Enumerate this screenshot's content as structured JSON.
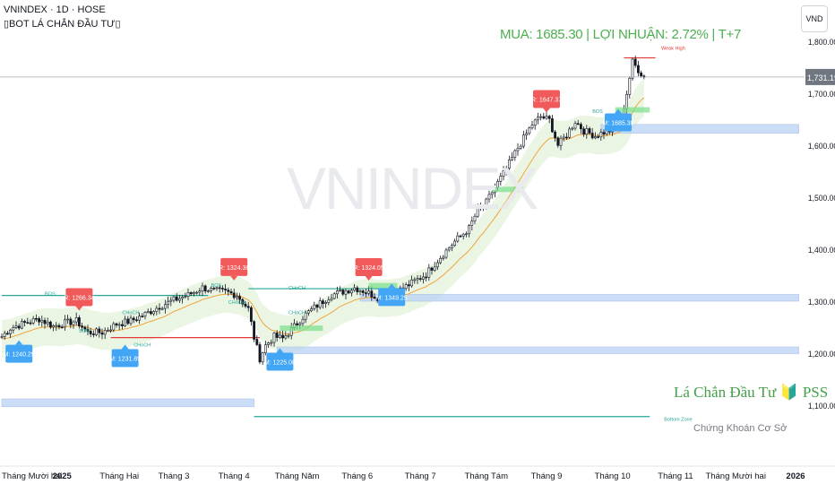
{
  "header": {
    "title": "VNINDEX · 1D · HOSE",
    "indicator": "▯BOT LÁ CHẮN ĐẦU TƯ▯",
    "currency": "VND"
  },
  "watermark": "VNINDEX",
  "trade_info": "MUA: 1685.30 | LỢI NHUẬN: 2.72% | T+7",
  "brand": {
    "name": "Lá Chắn Đầu Tư 🔰 PSS",
    "subtitle": "Chứng Khoán Cơ Sở"
  },
  "colors": {
    "up": "#131722",
    "down": "#131722",
    "ema": "#f2a33a",
    "band": "#e8f5e0",
    "resistance_label": "#f05a5a",
    "support_label": "#42a5f5",
    "support_zone": "#bbd3f5",
    "level_green": "#26a69a",
    "level_red": "#e53935"
  },
  "chart_data": {
    "type": "candlestick",
    "symbol": "VNINDEX",
    "interval": "1D",
    "ylim": [
      1060,
      1840
    ],
    "y_ticks": [
      "1,100.00",
      "1,200.00",
      "1,300.00",
      "1,400.00",
      "1,500.00",
      "1,600.00",
      "1,700.00",
      "1,800.00"
    ],
    "y_tick_values": [
      1100,
      1200,
      1300,
      1400,
      1500,
      1600,
      1700,
      1800
    ],
    "x_ticks": [
      "Tháng Mười hai",
      "2025",
      "Tháng Hai",
      "Tháng 3",
      "Tháng 4",
      "Tháng Năm",
      "Tháng 6",
      "Tháng 7",
      "Tháng Tám",
      "Tháng 9",
      "Tháng 10",
      "Tháng 11",
      "Tháng Mười hai",
      "2026"
    ],
    "x_tick_index": [
      0,
      21,
      41,
      60,
      81,
      103,
      124,
      146,
      169,
      190,
      213,
      235,
      256,
      278
    ],
    "last_bar_index": 224,
    "last_price": "1,731.19",
    "last_price_value": 1731.19,
    "price_path": [
      [
        0,
        1232
      ],
      [
        3,
        1248
      ],
      [
        8,
        1258
      ],
      [
        13,
        1266
      ],
      [
        18,
        1252
      ],
      [
        22,
        1258
      ],
      [
        26,
        1262
      ],
      [
        30,
        1240
      ],
      [
        35,
        1240
      ],
      [
        40,
        1256
      ],
      [
        45,
        1262
      ],
      [
        50,
        1275
      ],
      [
        55,
        1290
      ],
      [
        60,
        1302
      ],
      [
        65,
        1312
      ],
      [
        70,
        1326
      ],
      [
        74,
        1320
      ],
      [
        78,
        1318
      ],
      [
        82,
        1312
      ],
      [
        86,
        1285
      ],
      [
        88,
        1230
      ],
      [
        90,
        1190
      ],
      [
        92,
        1215
      ],
      [
        95,
        1232
      ],
      [
        98,
        1228
      ],
      [
        101,
        1245
      ],
      [
        105,
        1270
      ],
      [
        110,
        1292
      ],
      [
        115,
        1312
      ],
      [
        120,
        1320
      ],
      [
        123,
        1326
      ],
      [
        127,
        1318
      ],
      [
        131,
        1308
      ],
      [
        135,
        1316
      ],
      [
        139,
        1322
      ],
      [
        143,
        1335
      ],
      [
        148,
        1352
      ],
      [
        153,
        1385
      ],
      [
        158,
        1415
      ],
      [
        163,
        1440
      ],
      [
        166,
        1475
      ],
      [
        168,
        1480
      ],
      [
        171,
        1510
      ],
      [
        175,
        1545
      ],
      [
        180,
        1595
      ],
      [
        185,
        1640
      ],
      [
        188,
        1655
      ],
      [
        191,
        1648
      ],
      [
        194,
        1600
      ],
      [
        197,
        1620
      ],
      [
        200,
        1646
      ],
      [
        203,
        1628
      ],
      [
        207,
        1618
      ],
      [
        210,
        1625
      ],
      [
        213,
        1630
      ],
      [
        216,
        1650
      ],
      [
        218,
        1700
      ],
      [
        220,
        1760
      ],
      [
        222,
        1745
      ],
      [
        224,
        1731
      ]
    ],
    "ema_offset": -14,
    "band_halfwidth": 36,
    "levels": [
      {
        "label": "BOS",
        "value": 1311,
        "from": 0,
        "to": 72,
        "color": "#26a69a"
      },
      {
        "label": "CHoCH",
        "value": 1230,
        "from": 38,
        "to": 90,
        "color": "#e53935"
      },
      {
        "label": "CHoCH",
        "value": 1324,
        "from": 86,
        "to": 135,
        "color": "#26a69a"
      },
      {
        "label": "BOS",
        "value": 1768,
        "from": 217,
        "to": 228,
        "color": "#e53935"
      },
      {
        "label": "",
        "value": 1078,
        "from": 88,
        "to": 226,
        "color": "#26a69a"
      }
    ],
    "zones": [
      {
        "value_top": 1112,
        "value_bottom": 1097,
        "from": 0,
        "to": 88
      },
      {
        "value_top": 1313,
        "value_bottom": 1300,
        "from": 125,
        "to": 278
      },
      {
        "value_top": 1212,
        "value_bottom": 1199,
        "from": 96,
        "to": 278
      },
      {
        "value_top": 1640,
        "value_bottom": 1623,
        "from": 209,
        "to": 278
      }
    ],
    "markers": [
      {
        "text": "R: 1266.34",
        "value": 1266.34,
        "index": 27,
        "kind": "resistance"
      },
      {
        "text": "R: 1324.36",
        "value": 1324.36,
        "index": 81,
        "kind": "resistance"
      },
      {
        "text": "R: 1324.05",
        "value": 1324.05,
        "index": 128,
        "kind": "resistance"
      },
      {
        "text": "R: 1647.37",
        "value": 1647.37,
        "index": 190,
        "kind": "resistance"
      },
      {
        "text": "M: 1240.29",
        "value": 1240.29,
        "index": 6,
        "kind": "support"
      },
      {
        "text": "M: 1231.89",
        "value": 1231.89,
        "index": 43,
        "kind": "support"
      },
      {
        "text": "M: 1225.08",
        "value": 1225.08,
        "index": 97,
        "kind": "support"
      },
      {
        "text": "M: 1349.25",
        "value": 1349.25,
        "index": 136,
        "kind": "support"
      },
      {
        "text": "M: 1685.30",
        "value": 1685.3,
        "index": 215,
        "kind": "support"
      }
    ],
    "small_labels": [
      {
        "text": "BOS",
        "value": 1311,
        "index": 15
      },
      {
        "text": "CHoCH",
        "value": 1275,
        "index": 42
      },
      {
        "text": "BOS",
        "value": 1240,
        "index": 27
      },
      {
        "text": "BOS",
        "value": 1328,
        "index": 73
      },
      {
        "text": "CHoCH",
        "value": 1295,
        "index": 79
      },
      {
        "text": "CHoCH",
        "value": 1275,
        "index": 100
      },
      {
        "text": "CHoCH",
        "value": 1322,
        "index": 100
      },
      {
        "text": "CHoCH",
        "value": 1213,
        "index": 46
      },
      {
        "text": "BOS",
        "value": 1662,
        "index": 206
      },
      {
        "text": "Bottom Zone",
        "value": 1070,
        "index": 231
      },
      {
        "text": "Weak High",
        "value": 1784,
        "index": 230
      }
    ],
    "entry_zones": [
      {
        "value": 1248,
        "from": 97,
        "to": 112
      },
      {
        "value": 1330,
        "from": 128,
        "to": 138
      },
      {
        "value": 1515,
        "from": 171,
        "to": 182
      },
      {
        "value": 1668,
        "from": 214,
        "to": 226
      }
    ]
  }
}
